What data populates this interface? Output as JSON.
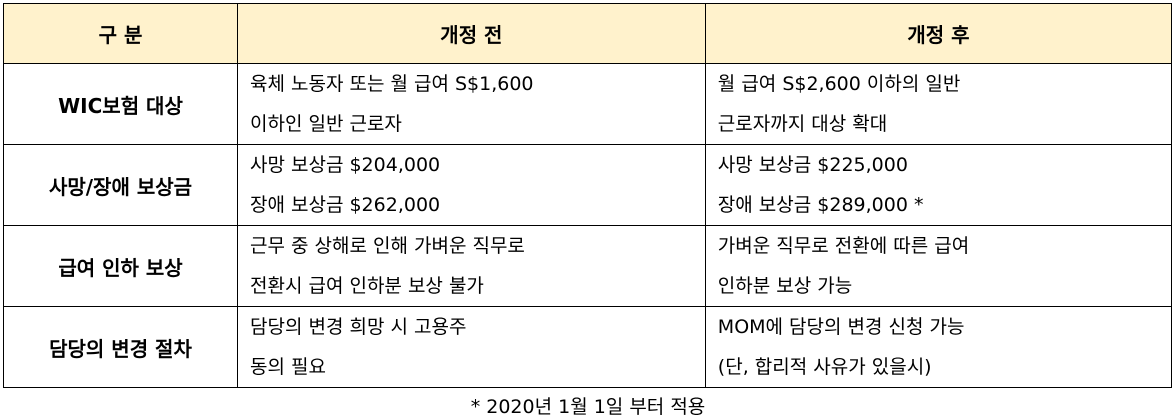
{
  "headers": [
    "구 분",
    "개정 전",
    "개정 후"
  ],
  "rows": [
    {
      "label": "WIC보험 대상",
      "before": [
        "육체 노동자 또는 월 급여 S$1,600",
        "이하인 일반 근로자"
      ],
      "after": [
        "월 급여 S$2,600 이하의 일반",
        "근로자까지 대상 확대"
      ]
    },
    {
      "label": "사망/장애 보상금",
      "before": [
        "사망 보상금 $204,000",
        "장애 보상금 $262,000"
      ],
      "after": [
        "사망 보상금 $225,000",
        "장애 보상금 $289,000 *"
      ]
    },
    {
      "label": "급여 인하 보상",
      "before": [
        "근무 중 상해로 인해 가벼운 직무로",
        "전환시 급여 인하분 보상 불가"
      ],
      "after": [
        "가벼운 직무로 전환에 따른 급여",
        "인하분 보상 가능"
      ]
    },
    {
      "label": "담당의 변경 절차",
      "before": [
        "담당의 변경 희망 시 고용주",
        "동의 필요"
      ],
      "after": [
        "MOM에 담당의 변경 신청 가능",
        "(단, 합리적 사유가 있을시)"
      ]
    }
  ],
  "footnote": "* 2020년 1월 1일 부터 적용",
  "colors": {
    "header_bg": "#fff2cc"
  }
}
